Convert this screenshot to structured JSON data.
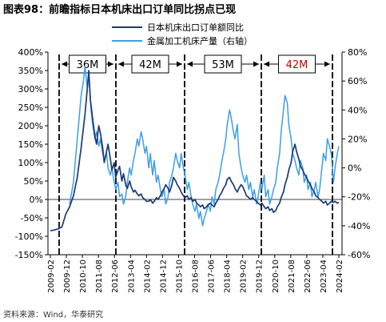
{
  "chart_data": {
    "type": "line",
    "title": "图表98：前瞻指标日本机床出口订单同比拐点已现",
    "source": "资料来源：Wind，华泰研究",
    "left_axis": {
      "min": -150,
      "max": 400,
      "step": 50,
      "unit": "%"
    },
    "right_axis": {
      "min": -60,
      "max": 80,
      "step": 20,
      "unit": "%"
    },
    "x_ticks": [
      "2009-02",
      "2009-12",
      "2010-10",
      "2011-08",
      "2012-06",
      "2013-04",
      "2014-02",
      "2014-12",
      "2015-10",
      "2016-08",
      "2017-06",
      "2018-04",
      "2019-02",
      "2019-12",
      "2020-10",
      "2021-08",
      "2022-06",
      "2023-04",
      "2024-02"
    ],
    "cycle_boxes": [
      {
        "label": "36M",
        "color": "#000000"
      },
      {
        "label": "42M",
        "color": "#000000"
      },
      {
        "label": "53M",
        "color": "#000000"
      },
      {
        "label": "42M",
        "color": "#c00000"
      }
    ],
    "series": [
      {
        "name": "日本机床出口订单额同比",
        "axis": "left",
        "color": "#1a3a78",
        "points": [
          [
            0,
            -85
          ],
          [
            1,
            -83
          ],
          [
            2,
            -80
          ],
          [
            3,
            -75
          ],
          [
            4,
            -40
          ],
          [
            5,
            -20
          ],
          [
            6,
            10
          ],
          [
            7,
            60
          ],
          [
            8,
            140
          ],
          [
            9,
            230
          ],
          [
            9.6,
            300
          ],
          [
            10,
            350
          ],
          [
            10.4,
            270
          ],
          [
            11,
            220
          ],
          [
            11.6,
            170
          ],
          [
            12,
            150
          ],
          [
            12.6,
            200
          ],
          [
            13,
            180
          ],
          [
            13.6,
            140
          ],
          [
            14,
            100
          ],
          [
            14.6,
            130
          ],
          [
            15,
            150
          ],
          [
            15.6,
            110
          ],
          [
            16,
            80
          ],
          [
            16.6,
            100
          ],
          [
            17,
            60
          ],
          [
            17.6,
            80
          ],
          [
            18,
            90
          ],
          [
            18.6,
            50
          ],
          [
            19,
            70
          ],
          [
            19.6,
            40
          ],
          [
            20,
            30
          ],
          [
            20.6,
            50
          ],
          [
            21,
            35
          ],
          [
            21.6,
            20
          ],
          [
            22,
            25
          ],
          [
            22.6,
            15
          ],
          [
            23,
            10
          ],
          [
            23.6,
            15
          ],
          [
            24,
            5
          ],
          [
            24.6,
            0
          ],
          [
            25,
            -5
          ],
          [
            25.6,
            -5
          ],
          [
            26,
            0
          ],
          [
            26.6,
            -10
          ],
          [
            27,
            -5
          ],
          [
            27.6,
            5
          ],
          [
            28,
            0
          ],
          [
            28.6,
            10
          ],
          [
            29,
            20
          ],
          [
            29.6,
            30
          ],
          [
            30,
            40
          ],
          [
            30.6,
            30
          ],
          [
            31,
            20
          ],
          [
            31.6,
            40
          ],
          [
            32,
            60
          ],
          [
            32.6,
            50
          ],
          [
            33,
            40
          ],
          [
            33.6,
            30
          ],
          [
            34,
            20
          ],
          [
            34.6,
            10
          ],
          [
            35,
            5
          ],
          [
            35.6,
            10
          ],
          [
            36,
            0
          ],
          [
            36.6,
            5
          ],
          [
            37,
            -5
          ],
          [
            37.6,
            0
          ],
          [
            38,
            -10
          ],
          [
            38.6,
            -15
          ],
          [
            39,
            -20
          ],
          [
            39.6,
            -15
          ],
          [
            40,
            -25
          ],
          [
            40.6,
            -20
          ],
          [
            41,
            -15
          ],
          [
            41.6,
            -10
          ],
          [
            42,
            -15
          ],
          [
            42.6,
            -20
          ],
          [
            43,
            -10
          ],
          [
            43.6,
            0
          ],
          [
            44,
            10
          ],
          [
            44.6,
            20
          ],
          [
            45,
            30
          ],
          [
            45.6,
            40
          ],
          [
            46,
            55
          ],
          [
            46.6,
            60
          ],
          [
            47,
            50
          ],
          [
            47.6,
            40
          ],
          [
            48,
            30
          ],
          [
            48.6,
            20
          ],
          [
            49,
            30
          ],
          [
            49.6,
            40
          ],
          [
            50,
            35
          ],
          [
            50.6,
            20
          ],
          [
            51,
            10
          ],
          [
            51.6,
            5
          ],
          [
            52,
            0
          ],
          [
            52.6,
            5
          ],
          [
            53,
            0
          ],
          [
            53.6,
            -5
          ],
          [
            54,
            -10
          ],
          [
            54.6,
            -15
          ],
          [
            55,
            -10
          ],
          [
            55.6,
            -20
          ],
          [
            56,
            -25
          ],
          [
            56.6,
            -20
          ],
          [
            57,
            -30
          ],
          [
            57.6,
            -25
          ],
          [
            58,
            -35
          ],
          [
            58.6,
            -30
          ],
          [
            59,
            -20
          ],
          [
            59.6,
            -10
          ],
          [
            60,
            5
          ],
          [
            60.6,
            20
          ],
          [
            61,
            40
          ],
          [
            61.6,
            60
          ],
          [
            62,
            80
          ],
          [
            62.6,
            100
          ],
          [
            63,
            130
          ],
          [
            63.6,
            150
          ],
          [
            64,
            130
          ],
          [
            64.6,
            110
          ],
          [
            65,
            90
          ],
          [
            65.6,
            80
          ],
          [
            66,
            70
          ],
          [
            66.6,
            60
          ],
          [
            67,
            50
          ],
          [
            67.6,
            40
          ],
          [
            68,
            30
          ],
          [
            68.6,
            20
          ],
          [
            69,
            10
          ],
          [
            69.6,
            5
          ],
          [
            70,
            0
          ],
          [
            70.6,
            -5
          ],
          [
            71,
            -10
          ],
          [
            71.6,
            -5
          ],
          [
            72,
            -15
          ],
          [
            72.6,
            -10
          ],
          [
            73,
            -5
          ],
          [
            73.6,
            -8
          ],
          [
            74,
            -5
          ],
          [
            74.6,
            -10
          ],
          [
            75,
            -8
          ]
        ]
      },
      {
        "name": "金属加工机床产量（右轴）",
        "axis": "right",
        "color": "#3d9ee6",
        "points": [
          [
            5,
            -25
          ],
          [
            6,
            -10
          ],
          [
            7,
            20
          ],
          [
            8,
            50
          ],
          [
            8.6,
            60
          ],
          [
            9,
            70
          ],
          [
            9.6,
            55
          ],
          [
            10,
            65
          ],
          [
            10.6,
            40
          ],
          [
            11,
            30
          ],
          [
            11.6,
            20
          ],
          [
            12,
            25
          ],
          [
            12.6,
            15
          ],
          [
            13,
            20
          ],
          [
            13.6,
            10
          ],
          [
            14,
            5
          ],
          [
            14.6,
            10
          ],
          [
            15,
            0
          ],
          [
            15.6,
            -5
          ],
          [
            16,
            0
          ],
          [
            16.6,
            -10
          ],
          [
            17,
            -15
          ],
          [
            17.6,
            -10
          ],
          [
            18,
            -20
          ],
          [
            18.6,
            -18
          ],
          [
            19,
            -25
          ],
          [
            19.6,
            -20
          ],
          [
            20,
            -10
          ],
          [
            20.6,
            0
          ],
          [
            21,
            -5
          ],
          [
            21.6,
            5
          ],
          [
            22,
            10
          ],
          [
            22.6,
            20
          ],
          [
            23,
            15
          ],
          [
            23.6,
            25
          ],
          [
            24,
            20
          ],
          [
            24.6,
            10
          ],
          [
            25,
            15
          ],
          [
            25.6,
            0
          ],
          [
            26,
            10
          ],
          [
            26.6,
            -5
          ],
          [
            27,
            5
          ],
          [
            27.6,
            -10
          ],
          [
            28,
            -5
          ],
          [
            28.6,
            -15
          ],
          [
            29,
            -20
          ],
          [
            29.6,
            -15
          ],
          [
            30,
            -25
          ],
          [
            30.6,
            -20
          ],
          [
            31,
            -10
          ],
          [
            31.6,
            -5
          ],
          [
            32,
            0
          ],
          [
            32.6,
            10
          ],
          [
            33,
            5
          ],
          [
            33.6,
            0
          ],
          [
            34,
            10
          ],
          [
            34.6,
            0
          ],
          [
            35,
            -5
          ],
          [
            35.6,
            -15
          ],
          [
            36,
            -10
          ],
          [
            36.6,
            -20
          ],
          [
            37,
            -25
          ],
          [
            37.6,
            -30
          ],
          [
            38,
            -25
          ],
          [
            38.6,
            -35
          ],
          [
            39,
            -30
          ],
          [
            39.6,
            -40
          ],
          [
            40,
            -35
          ],
          [
            40.6,
            -30
          ],
          [
            41,
            -25
          ],
          [
            41.6,
            -30
          ],
          [
            42,
            -20
          ],
          [
            42.6,
            -25
          ],
          [
            43,
            -15
          ],
          [
            43.6,
            -10
          ],
          [
            44,
            -5
          ],
          [
            44.6,
            5
          ],
          [
            45,
            10
          ],
          [
            45.6,
            20
          ],
          [
            46,
            30
          ],
          [
            46.6,
            40
          ],
          [
            47,
            35
          ],
          [
            47.6,
            25
          ],
          [
            48,
            20
          ],
          [
            48.6,
            30
          ],
          [
            49,
            10
          ],
          [
            49.6,
            0
          ],
          [
            50,
            -5
          ],
          [
            50.6,
            -10
          ],
          [
            51,
            -5
          ],
          [
            51.6,
            -15
          ],
          [
            52,
            -10
          ],
          [
            52.6,
            -20
          ],
          [
            53,
            -15
          ],
          [
            53.6,
            -25
          ],
          [
            54,
            -20
          ],
          [
            54.6,
            -10
          ],
          [
            55,
            -15
          ],
          [
            55.6,
            -5
          ],
          [
            56,
            -20
          ],
          [
            56.6,
            -15
          ],
          [
            57,
            -25
          ],
          [
            57.6,
            -20
          ],
          [
            58,
            -15
          ],
          [
            58.6,
            -10
          ],
          [
            59,
            0
          ],
          [
            59.6,
            10
          ],
          [
            60,
            25
          ],
          [
            60.6,
            40
          ],
          [
            61,
            50
          ],
          [
            61.6,
            45
          ],
          [
            62,
            30
          ],
          [
            62.6,
            20
          ],
          [
            63,
            10
          ],
          [
            63.6,
            5
          ],
          [
            64,
            0
          ],
          [
            64.6,
            -5
          ],
          [
            65,
            5
          ],
          [
            65.6,
            0
          ],
          [
            66,
            -10
          ],
          [
            66.6,
            -5
          ],
          [
            67,
            -15
          ],
          [
            67.6,
            -10
          ],
          [
            68,
            -20
          ],
          [
            68.6,
            -15
          ],
          [
            69,
            -10
          ],
          [
            69.6,
            -20
          ],
          [
            70,
            -15
          ],
          [
            70.6,
            0
          ],
          [
            71,
            10
          ],
          [
            71.6,
            5
          ],
          [
            72,
            20
          ],
          [
            72.6,
            15
          ],
          [
            73,
            10
          ],
          [
            73.6,
            -10
          ],
          [
            74,
            0
          ],
          [
            74.6,
            10
          ],
          [
            75,
            15
          ]
        ]
      }
    ]
  }
}
